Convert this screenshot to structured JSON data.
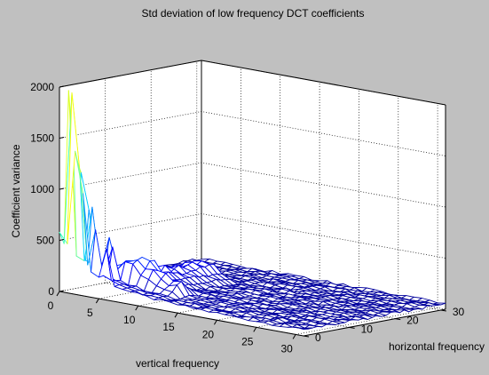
{
  "chart_data": {
    "type": "surface",
    "title": "Std deviation of low frequency DCT coefficients",
    "zlabel": "Coefficient variance",
    "xlabel": "vertical frequency",
    "ylabel": "horizontal frequency",
    "zlim": [
      0,
      2000
    ],
    "z_ticks": [
      "0",
      "500",
      "1000",
      "1500",
      "2000"
    ],
    "vertical_ticks": [
      "0",
      "5",
      "10",
      "15",
      "20",
      "25",
      "30"
    ],
    "horizontal_ticks": [
      "0",
      "10",
      "20",
      "30"
    ],
    "grid": true,
    "colormap": "jet",
    "grid_size": [
      32,
      32
    ],
    "baseline_level": 40,
    "peaks": [
      {
        "vertical_frequency": 1,
        "horizontal_frequency": 1,
        "value": 1950
      },
      {
        "vertical_frequency": 0,
        "horizontal_frequency": 2,
        "value": 1950
      },
      {
        "vertical_frequency": 2,
        "horizontal_frequency": 0,
        "value": 1400
      },
      {
        "vertical_frequency": 0,
        "horizontal_frequency": 3,
        "value": 1350
      },
      {
        "vertical_frequency": 2,
        "horizontal_frequency": 1,
        "value": 1200
      },
      {
        "vertical_frequency": 1,
        "horizontal_frequency": 3,
        "value": 1150
      },
      {
        "vertical_frequency": 3,
        "horizontal_frequency": 0,
        "value": 1000
      },
      {
        "vertical_frequency": 0,
        "horizontal_frequency": 4,
        "value": 950
      },
      {
        "vertical_frequency": 3,
        "horizontal_frequency": 2,
        "value": 850
      },
      {
        "vertical_frequency": 2,
        "horizontal_frequency": 3,
        "value": 800
      },
      {
        "vertical_frequency": 4,
        "horizontal_frequency": 1,
        "value": 650
      },
      {
        "vertical_frequency": 1,
        "horizontal_frequency": 5,
        "value": 620
      },
      {
        "vertical_frequency": 4,
        "horizontal_frequency": 4,
        "value": 550
      },
      {
        "vertical_frequency": 0,
        "horizontal_frequency": 6,
        "value": 550
      },
      {
        "vertical_frequency": 6,
        "horizontal_frequency": 0,
        "value": 500
      },
      {
        "vertical_frequency": 5,
        "horizontal_frequency": 3,
        "value": 480
      }
    ]
  }
}
